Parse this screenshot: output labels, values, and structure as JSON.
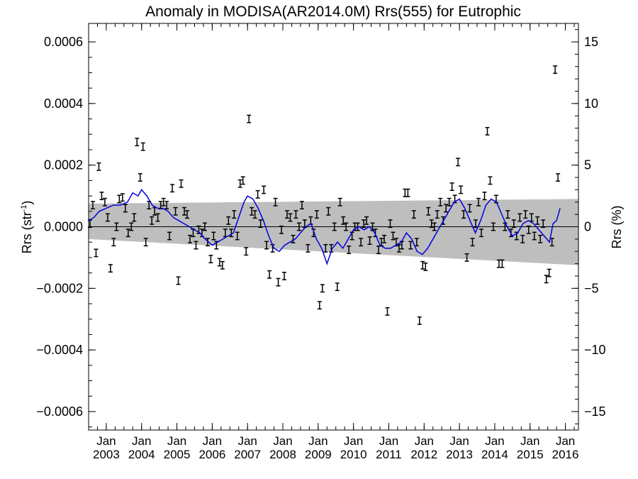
{
  "chart_data": {
    "type": "scatter",
    "title": "Anomaly in MODISA(AR2014.0M) Rrs(555) for Eutrophic",
    "ylabel_left_prefix": "Rrs (str",
    "ylabel_left_exp": "-1",
    "ylabel_left_suffix": ")",
    "ylabel_right": "Rrs (%)",
    "x_range": [
      2002.5,
      2016.37
    ],
    "ylim": [
      -0.00066,
      0.00066
    ],
    "ylim_right": [
      -16.5,
      16.5
    ],
    "y_ticks": [
      {
        "value": 0.0006,
        "label": "0.0006"
      },
      {
        "value": 0.0004,
        "label": "0.0004"
      },
      {
        "value": 0.0002,
        "label": "0.0002"
      },
      {
        "value": 0.0,
        "label": "0.0000"
      },
      {
        "value": -0.0002,
        "label": "−0.0002"
      },
      {
        "value": -0.0004,
        "label": "−0.0004"
      },
      {
        "value": -0.0006,
        "label": "−0.0006"
      }
    ],
    "y2_ticks": [
      {
        "value": 15,
        "label": "15"
      },
      {
        "value": 10,
        "label": "10"
      },
      {
        "value": 5,
        "label": "5"
      },
      {
        "value": 0,
        "label": "0"
      },
      {
        "value": -5,
        "label": "−5"
      },
      {
        "value": -10,
        "label": "−10"
      },
      {
        "value": -15,
        "label": "−15"
      }
    ],
    "x_ticks": [
      {
        "value": 2003.0,
        "month": "Jan",
        "year": "2003"
      },
      {
        "value": 2004.0,
        "month": "Jan",
        "year": "2004"
      },
      {
        "value": 2005.0,
        "month": "Jan",
        "year": "2005"
      },
      {
        "value": 2006.0,
        "month": "Jan",
        "year": "2006"
      },
      {
        "value": 2007.0,
        "month": "Jan",
        "year": "2007"
      },
      {
        "value": 2008.0,
        "month": "Jan",
        "year": "2008"
      },
      {
        "value": 2009.0,
        "month": "Jan",
        "year": "2009"
      },
      {
        "value": 2010.0,
        "month": "Jan",
        "year": "2010"
      },
      {
        "value": 2011.0,
        "month": "Jan",
        "year": "2011"
      },
      {
        "value": 2012.0,
        "month": "Jan",
        "year": "2012"
      },
      {
        "value": 2013.0,
        "month": "Jan",
        "year": "2013"
      },
      {
        "value": 2014.0,
        "month": "Jan",
        "year": "2014"
      },
      {
        "value": 2015.0,
        "month": "Jan",
        "year": "2015"
      },
      {
        "value": 2016.0,
        "month": "Jan",
        "year": "2016"
      }
    ],
    "error_bar": 1.2e-05,
    "confidence_band": {
      "x": [
        2002.5,
        2016.37
      ],
      "upper": [
        7.5e-05,
        9e-05
      ],
      "lower": [
        -4e-05,
        -0.000125
      ]
    },
    "zero_line": 0,
    "colors": {
      "points": "#000000",
      "running_mean": "#0000dd",
      "band": "#bebebe",
      "zero_line": "#000000"
    },
    "points": [
      [
        2002.54,
        1e-05
      ],
      [
        2002.62,
        7e-05
      ],
      [
        2002.71,
        -8.5e-05
      ],
      [
        2002.79,
        0.000195
      ],
      [
        2002.87,
        0.0001
      ],
      [
        2002.96,
        8e-05
      ],
      [
        2003.04,
        3e-05
      ],
      [
        2003.12,
        -0.000135
      ],
      [
        2003.21,
        -5e-05
      ],
      [
        2003.29,
        0.0
      ],
      [
        2003.37,
        9e-05
      ],
      [
        2003.46,
        9.5e-05
      ],
      [
        2003.54,
        6e-05
      ],
      [
        2003.62,
        -2e-05
      ],
      [
        2003.71,
        0.0
      ],
      [
        2003.79,
        3e-05
      ],
      [
        2003.87,
        0.000275
      ],
      [
        2003.96,
        0.00016
      ],
      [
        2004.04,
        0.00026
      ],
      [
        2004.12,
        -5e-05
      ],
      [
        2004.21,
        7e-05
      ],
      [
        2004.29,
        2e-05
      ],
      [
        2004.37,
        5e-05
      ],
      [
        2004.46,
        3e-05
      ],
      [
        2004.54,
        7e-05
      ],
      [
        2004.62,
        8e-05
      ],
      [
        2004.71,
        7e-05
      ],
      [
        2004.79,
        -3e-05
      ],
      [
        2004.87,
        0.000125
      ],
      [
        2004.96,
        5e-05
      ],
      [
        2005.04,
        -0.000175
      ],
      [
        2005.12,
        0.00014
      ],
      [
        2005.21,
        5e-05
      ],
      [
        2005.29,
        4e-05
      ],
      [
        2005.37,
        -4e-05
      ],
      [
        2005.46,
        -2e-05
      ],
      [
        2005.54,
        -6e-05
      ],
      [
        2005.62,
        -1e-05
      ],
      [
        2005.71,
        -2e-05
      ],
      [
        2005.79,
        0.0
      ],
      [
        2005.87,
        -5e-05
      ],
      [
        2005.96,
        -0.000105
      ],
      [
        2006.04,
        -3e-05
      ],
      [
        2006.12,
        -6e-05
      ],
      [
        2006.21,
        -0.000115
      ],
      [
        2006.29,
        -0.000125
      ],
      [
        2006.37,
        -2e-05
      ],
      [
        2006.46,
        2e-05
      ],
      [
        2006.54,
        -2e-05
      ],
      [
        2006.62,
        4e-05
      ],
      [
        2006.71,
        -3e-05
      ],
      [
        2006.79,
        0.00014
      ],
      [
        2006.87,
        0.00015
      ],
      [
        2006.96,
        -8e-05
      ],
      [
        2007.04,
        0.00035
      ],
      [
        2007.12,
        5e-05
      ],
      [
        2007.21,
        4e-05
      ],
      [
        2007.29,
        0.000105
      ],
      [
        2007.37,
        1e-05
      ],
      [
        2007.46,
        0.00012
      ],
      [
        2007.54,
        -6e-05
      ],
      [
        2007.62,
        -0.000155
      ],
      [
        2007.71,
        -7e-05
      ],
      [
        2007.79,
        8e-05
      ],
      [
        2007.87,
        -0.00018
      ],
      [
        2007.96,
        -1e-05
      ],
      [
        2008.04,
        -0.00016
      ],
      [
        2008.12,
        4e-05
      ],
      [
        2008.21,
        3e-05
      ],
      [
        2008.29,
        -4e-05
      ],
      [
        2008.37,
        4e-05
      ],
      [
        2008.46,
        0.0
      ],
      [
        2008.54,
        7e-05
      ],
      [
        2008.62,
        1e-05
      ],
      [
        2008.71,
        -7e-05
      ],
      [
        2008.79,
        2e-05
      ],
      [
        2008.87,
        -2e-05
      ],
      [
        2008.96,
        4e-05
      ],
      [
        2009.04,
        -0.000255
      ],
      [
        2009.12,
        -0.0002
      ],
      [
        2009.21,
        -7e-05
      ],
      [
        2009.29,
        5e-05
      ],
      [
        2009.37,
        -7e-05
      ],
      [
        2009.46,
        0.0
      ],
      [
        2009.54,
        -0.000195
      ],
      [
        2009.62,
        8e-05
      ],
      [
        2009.71,
        2e-05
      ],
      [
        2009.79,
        0.0
      ],
      [
        2009.87,
        -7.5e-05
      ],
      [
        2009.96,
        -3e-05
      ],
      [
        2010.04,
        0.0
      ],
      [
        2010.12,
        0.0
      ],
      [
        2010.21,
        -5e-05
      ],
      [
        2010.29,
        1e-05
      ],
      [
        2010.37,
        2e-05
      ],
      [
        2010.46,
        -4.5e-05
      ],
      [
        2010.54,
        0.0
      ],
      [
        2010.62,
        -2e-05
      ],
      [
        2010.71,
        -7.5e-05
      ],
      [
        2010.79,
        -5e-05
      ],
      [
        2010.87,
        -4e-05
      ],
      [
        2010.96,
        -0.000275
      ],
      [
        2011.04,
        1e-05
      ],
      [
        2011.12,
        -3e-05
      ],
      [
        2011.21,
        -5e-05
      ],
      [
        2011.29,
        -7e-05
      ],
      [
        2011.37,
        -6e-05
      ],
      [
        2011.46,
        0.00011
      ],
      [
        2011.54,
        0.00011
      ],
      [
        2011.62,
        -6e-05
      ],
      [
        2011.71,
        4e-05
      ],
      [
        2011.79,
        -5e-05
      ],
      [
        2011.87,
        -0.000305
      ],
      [
        2011.96,
        -0.000125
      ],
      [
        2012.04,
        -0.00013
      ],
      [
        2012.12,
        5e-05
      ],
      [
        2012.21,
        1e-05
      ],
      [
        2012.29,
        0.0
      ],
      [
        2012.37,
        4e-05
      ],
      [
        2012.46,
        8e-05
      ],
      [
        2012.54,
        2e-05
      ],
      [
        2012.62,
        6e-05
      ],
      [
        2012.71,
        8e-05
      ],
      [
        2012.79,
        0.00013
      ],
      [
        2012.87,
        9e-05
      ],
      [
        2012.96,
        0.00021
      ],
      [
        2013.04,
        0.00012
      ],
      [
        2013.12,
        4e-05
      ],
      [
        2013.21,
        -0.0001
      ],
      [
        2013.29,
        6e-05
      ],
      [
        2013.37,
        -5e-05
      ],
      [
        2013.46,
        1e-05
      ],
      [
        2013.54,
        8e-05
      ],
      [
        2013.62,
        -2e-05
      ],
      [
        2013.71,
        0.0001
      ],
      [
        2013.79,
        0.00031
      ],
      [
        2013.87,
        0.00015
      ],
      [
        2013.96,
        0.0
      ],
      [
        2014.04,
        9e-05
      ],
      [
        2014.12,
        -0.00012
      ],
      [
        2014.21,
        -0.00012
      ],
      [
        2014.29,
        0.0
      ],
      [
        2014.37,
        4e-05
      ],
      [
        2014.46,
        -2e-05
      ],
      [
        2014.54,
        1e-05
      ],
      [
        2014.62,
        -3e-05
      ],
      [
        2014.71,
        3e-05
      ],
      [
        2014.79,
        -4e-05
      ],
      [
        2014.87,
        4e-05
      ],
      [
        2014.96,
        -1e-05
      ],
      [
        2015.04,
        3e-05
      ],
      [
        2015.12,
        -3e-05
      ],
      [
        2015.21,
        2e-05
      ],
      [
        2015.29,
        -4e-05
      ],
      [
        2015.37,
        1e-05
      ],
      [
        2015.46,
        -0.00017
      ],
      [
        2015.54,
        -0.00015
      ],
      [
        2015.62,
        -5e-05
      ],
      [
        2015.71,
        0.00051
      ],
      [
        2015.79,
        0.00016
      ]
    ],
    "running_mean": [
      [
        2002.5,
        2e-05
      ],
      [
        2002.65,
        3e-05
      ],
      [
        2002.8,
        5e-05
      ],
      [
        2003.0,
        6e-05
      ],
      [
        2003.2,
        7e-05
      ],
      [
        2003.4,
        7e-05
      ],
      [
        2003.6,
        8e-05
      ],
      [
        2003.75,
        0.00011
      ],
      [
        2003.9,
        0.0001
      ],
      [
        2004.0,
        0.00012
      ],
      [
        2004.15,
        0.0001
      ],
      [
        2004.3,
        7e-05
      ],
      [
        2004.45,
        6e-05
      ],
      [
        2004.6,
        6e-05
      ],
      [
        2004.75,
        5e-05
      ],
      [
        2004.9,
        3e-05
      ],
      [
        2005.05,
        2e-05
      ],
      [
        2005.2,
        1e-05
      ],
      [
        2005.35,
        0.0
      ],
      [
        2005.5,
        -1e-05
      ],
      [
        2005.65,
        -2e-05
      ],
      [
        2005.8,
        -4e-05
      ],
      [
        2006.0,
        -6e-05
      ],
      [
        2006.15,
        -5e-05
      ],
      [
        2006.3,
        -4e-05
      ],
      [
        2006.45,
        -3e-05
      ],
      [
        2006.6,
        -2e-05
      ],
      [
        2006.75,
        3e-05
      ],
      [
        2006.9,
        8e-05
      ],
      [
        2007.0,
        0.0001
      ],
      [
        2007.15,
        9e-05
      ],
      [
        2007.3,
        6e-05
      ],
      [
        2007.45,
        2e-05
      ],
      [
        2007.6,
        -3e-05
      ],
      [
        2007.75,
        -7e-05
      ],
      [
        2007.9,
        -8e-05
      ],
      [
        2008.05,
        -6e-05
      ],
      [
        2008.2,
        -5e-05
      ],
      [
        2008.35,
        -4e-05
      ],
      [
        2008.5,
        -2e-05
      ],
      [
        2008.65,
        0.0
      ],
      [
        2008.8,
        1e-05
      ],
      [
        2008.95,
        -4e-05
      ],
      [
        2009.1,
        -7e-05
      ],
      [
        2009.25,
        -0.00012
      ],
      [
        2009.4,
        -7e-05
      ],
      [
        2009.55,
        -5e-05
      ],
      [
        2009.7,
        -7e-05
      ],
      [
        2009.85,
        -4e-05
      ],
      [
        2010.0,
        -1e-05
      ],
      [
        2010.15,
        0.0
      ],
      [
        2010.3,
        -1e-05
      ],
      [
        2010.45,
        0.0
      ],
      [
        2010.6,
        -2e-05
      ],
      [
        2010.75,
        -6e-05
      ],
      [
        2010.9,
        -7e-05
      ],
      [
        2011.05,
        -7e-05
      ],
      [
        2011.2,
        -6e-05
      ],
      [
        2011.35,
        -5e-05
      ],
      [
        2011.5,
        -2e-05
      ],
      [
        2011.65,
        -4e-05
      ],
      [
        2011.8,
        -8e-05
      ],
      [
        2011.95,
        -9e-05
      ],
      [
        2012.1,
        -7e-05
      ],
      [
        2012.25,
        -4e-05
      ],
      [
        2012.4,
        -1e-05
      ],
      [
        2012.55,
        2e-05
      ],
      [
        2012.7,
        5e-05
      ],
      [
        2012.85,
        8e-05
      ],
      [
        2013.0,
        9e-05
      ],
      [
        2013.15,
        6e-05
      ],
      [
        2013.3,
        2e-05
      ],
      [
        2013.45,
        -2e-05
      ],
      [
        2013.6,
        2e-05
      ],
      [
        2013.75,
        7e-05
      ],
      [
        2013.9,
        9e-05
      ],
      [
        2014.05,
        8e-05
      ],
      [
        2014.2,
        4e-05
      ],
      [
        2014.35,
        0.0
      ],
      [
        2014.5,
        -3e-05
      ],
      [
        2014.65,
        -2e-05
      ],
      [
        2014.8,
        1e-05
      ],
      [
        2014.95,
        2e-05
      ],
      [
        2015.1,
        1e-05
      ],
      [
        2015.25,
        -1e-05
      ],
      [
        2015.4,
        -3e-05
      ],
      [
        2015.55,
        -5e-05
      ],
      [
        2015.65,
        1e-05
      ],
      [
        2015.75,
        2e-05
      ],
      [
        2015.85,
        6e-05
      ]
    ]
  }
}
